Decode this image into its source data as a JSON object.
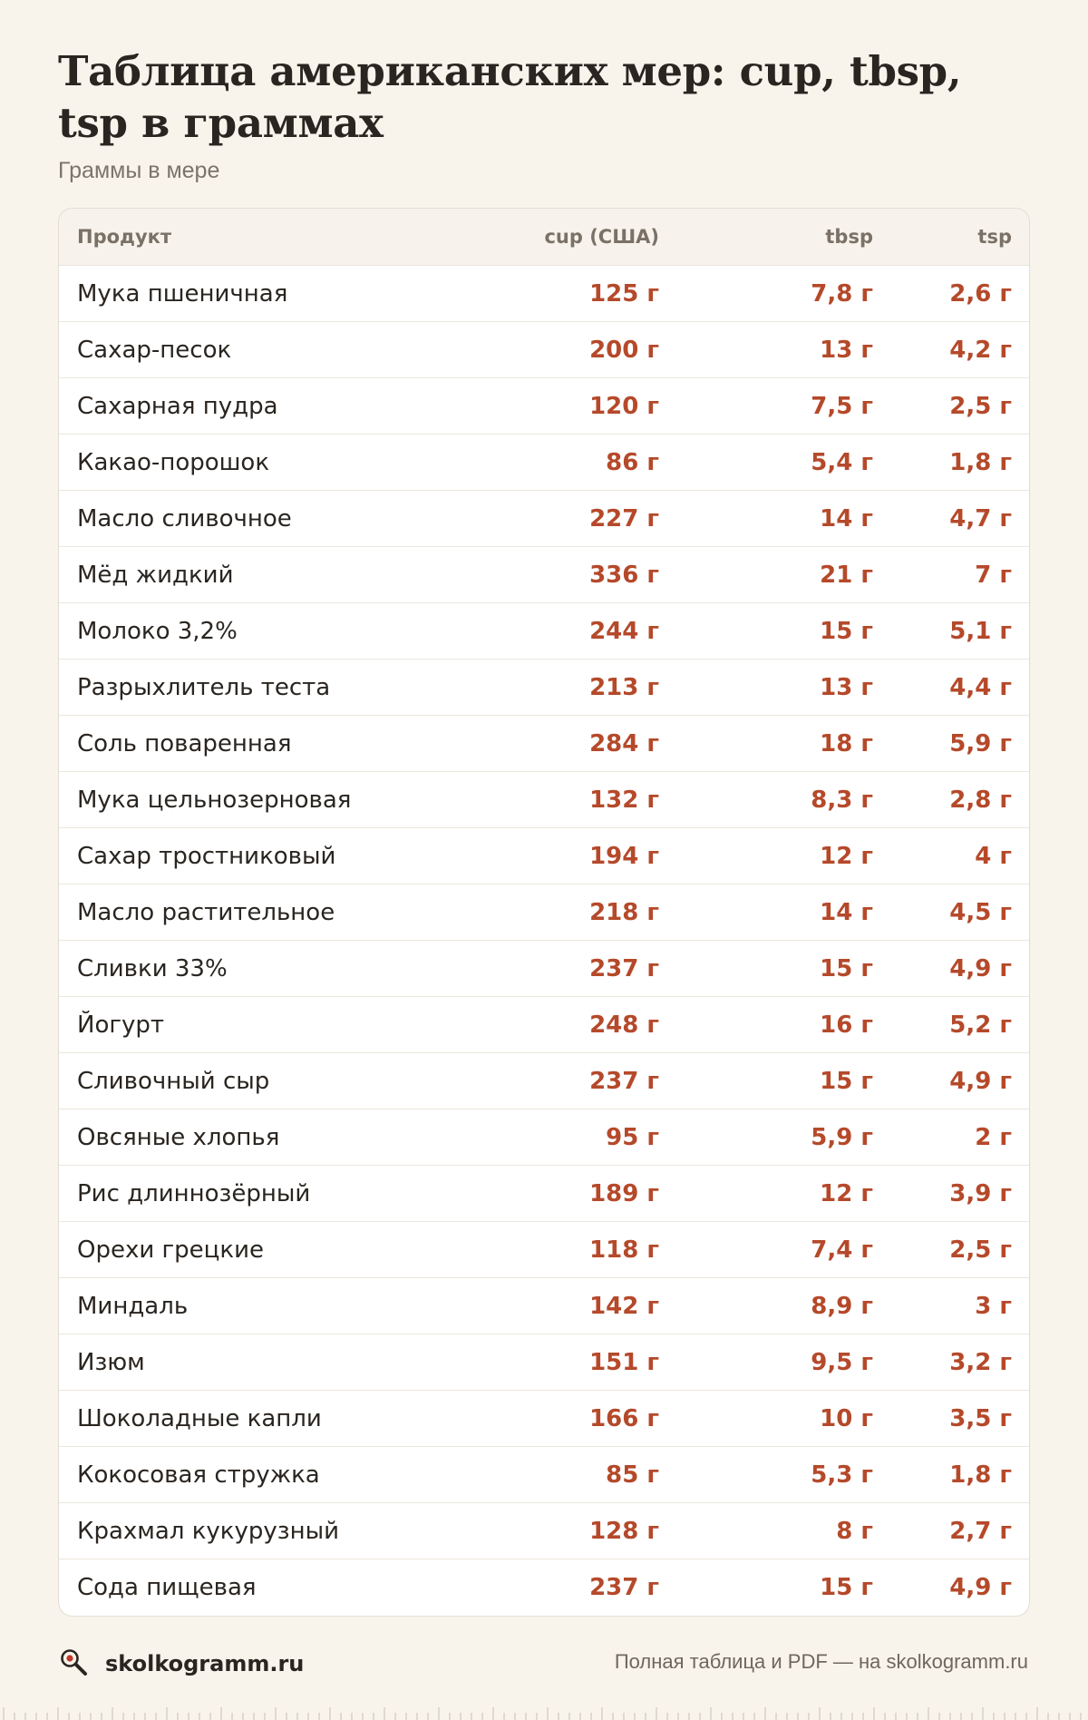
{
  "title": "Таблица американских мер: cup, tbsp, tsp в граммах",
  "subtitle": "Граммы в мере",
  "table": {
    "headers": {
      "product": "Продукт",
      "cup": "cup (США)",
      "tbsp": "tbsp",
      "tsp": "tsp"
    },
    "rows": [
      {
        "name": "Мука пшеничная",
        "cup": "125 г",
        "tbsp": "7,8 г",
        "tsp": "2,6 г"
      },
      {
        "name": "Сахар-песок",
        "cup": "200 г",
        "tbsp": "13 г",
        "tsp": "4,2 г"
      },
      {
        "name": "Сахарная пудра",
        "cup": "120 г",
        "tbsp": "7,5 г",
        "tsp": "2,5 г"
      },
      {
        "name": "Какао-порошок",
        "cup": "86 г",
        "tbsp": "5,4 г",
        "tsp": "1,8 г"
      },
      {
        "name": "Масло сливочное",
        "cup": "227 г",
        "tbsp": "14 г",
        "tsp": "4,7 г"
      },
      {
        "name": "Мёд жидкий",
        "cup": "336 г",
        "tbsp": "21 г",
        "tsp": "7 г"
      },
      {
        "name": "Молоко 3,2%",
        "cup": "244 г",
        "tbsp": "15 г",
        "tsp": "5,1 г"
      },
      {
        "name": "Разрыхлитель теста",
        "cup": "213 г",
        "tbsp": "13 г",
        "tsp": "4,4 г"
      },
      {
        "name": "Соль поваренная",
        "cup": "284 г",
        "tbsp": "18 г",
        "tsp": "5,9 г"
      },
      {
        "name": "Мука цельнозерновая",
        "cup": "132 г",
        "tbsp": "8,3 г",
        "tsp": "2,8 г"
      },
      {
        "name": "Сахар тростниковый",
        "cup": "194 г",
        "tbsp": "12 г",
        "tsp": "4 г"
      },
      {
        "name": "Масло растительное",
        "cup": "218 г",
        "tbsp": "14 г",
        "tsp": "4,5 г"
      },
      {
        "name": "Сливки 33%",
        "cup": "237 г",
        "tbsp": "15 г",
        "tsp": "4,9 г"
      },
      {
        "name": "Йогурт",
        "cup": "248 г",
        "tbsp": "16 г",
        "tsp": "5,2 г"
      },
      {
        "name": "Сливочный сыр",
        "cup": "237 г",
        "tbsp": "15 г",
        "tsp": "4,9 г"
      },
      {
        "name": "Овсяные хлопья",
        "cup": "95 г",
        "tbsp": "5,9 г",
        "tsp": "2 г"
      },
      {
        "name": "Рис длиннозёрный",
        "cup": "189 г",
        "tbsp": "12 г",
        "tsp": "3,9 г"
      },
      {
        "name": "Орехи грецкие",
        "cup": "118 г",
        "tbsp": "7,4 г",
        "tsp": "2,5 г"
      },
      {
        "name": "Миндаль",
        "cup": "142 г",
        "tbsp": "8,9 г",
        "tsp": "3 г"
      },
      {
        "name": "Изюм",
        "cup": "151 г",
        "tbsp": "9,5 г",
        "tsp": "3,2 г"
      },
      {
        "name": "Шоколадные капли",
        "cup": "166 г",
        "tbsp": "10 г",
        "tsp": "3,5 г"
      },
      {
        "name": "Кокосовая стружка",
        "cup": "85 г",
        "tbsp": "5,3 г",
        "tsp": "1,8 г"
      },
      {
        "name": "Крахмал кукурузный",
        "cup": "128 г",
        "tbsp": "8 г",
        "tsp": "2,7 г"
      },
      {
        "name": "Сода пищевая",
        "cup": "237 г",
        "tbsp": "15 г",
        "tsp": "4,9 г"
      }
    ]
  },
  "footer": {
    "brand": "skolkogramm.ru",
    "brand_icon": "magnifier-icon",
    "note": "Полная таблица и PDF — на skolkogramm.ru"
  },
  "colors": {
    "background": "#f8f4ec",
    "value_accent": "#b5492a",
    "header_bg": "#f7f3ec",
    "icon_accent": "#c0392b"
  }
}
